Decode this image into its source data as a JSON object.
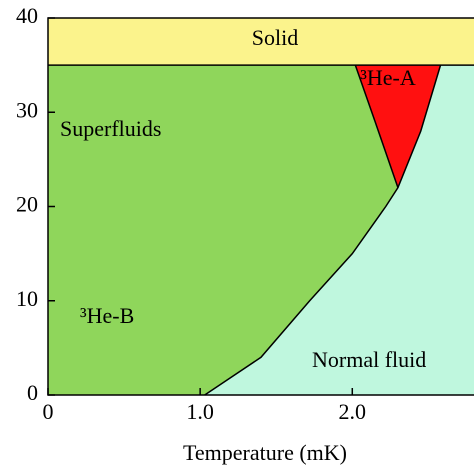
{
  "chart_data": {
    "type": "phase",
    "xlabel": "Temperature (mK)",
    "xlim": [
      0,
      2.8
    ],
    "ylim": [
      0,
      40
    ],
    "xticks": [
      0,
      {
        "value": 1,
        "label": "1.0"
      },
      {
        "value": 2,
        "label": "2.0"
      }
    ],
    "yticks": [
      0,
      10,
      20,
      30,
      40
    ],
    "solid_pressure": 35,
    "boundaries": [
      {
        "x": [
          1.03,
          1.4,
          1.72,
          2.0,
          2.22,
          2.3,
          2.45,
          2.58
        ],
        "y": [
          0,
          4,
          10,
          15,
          20,
          22,
          28,
          35
        ]
      },
      {
        "x": [
          2.3,
          2.15,
          2.02
        ],
        "y": [
          22,
          29,
          35
        ]
      }
    ],
    "regions": [
      {
        "label": "Solid",
        "color": "#fbf38c"
      },
      {
        "label": "Superfluids",
        "color": "#8fd65b"
      },
      {
        "label": "³He-A",
        "color": "#ff1010"
      },
      {
        "label": "³He-B",
        "color": "#8fd65b"
      },
      {
        "label": "Normal fluid",
        "color": "#bff7de"
      }
    ]
  }
}
